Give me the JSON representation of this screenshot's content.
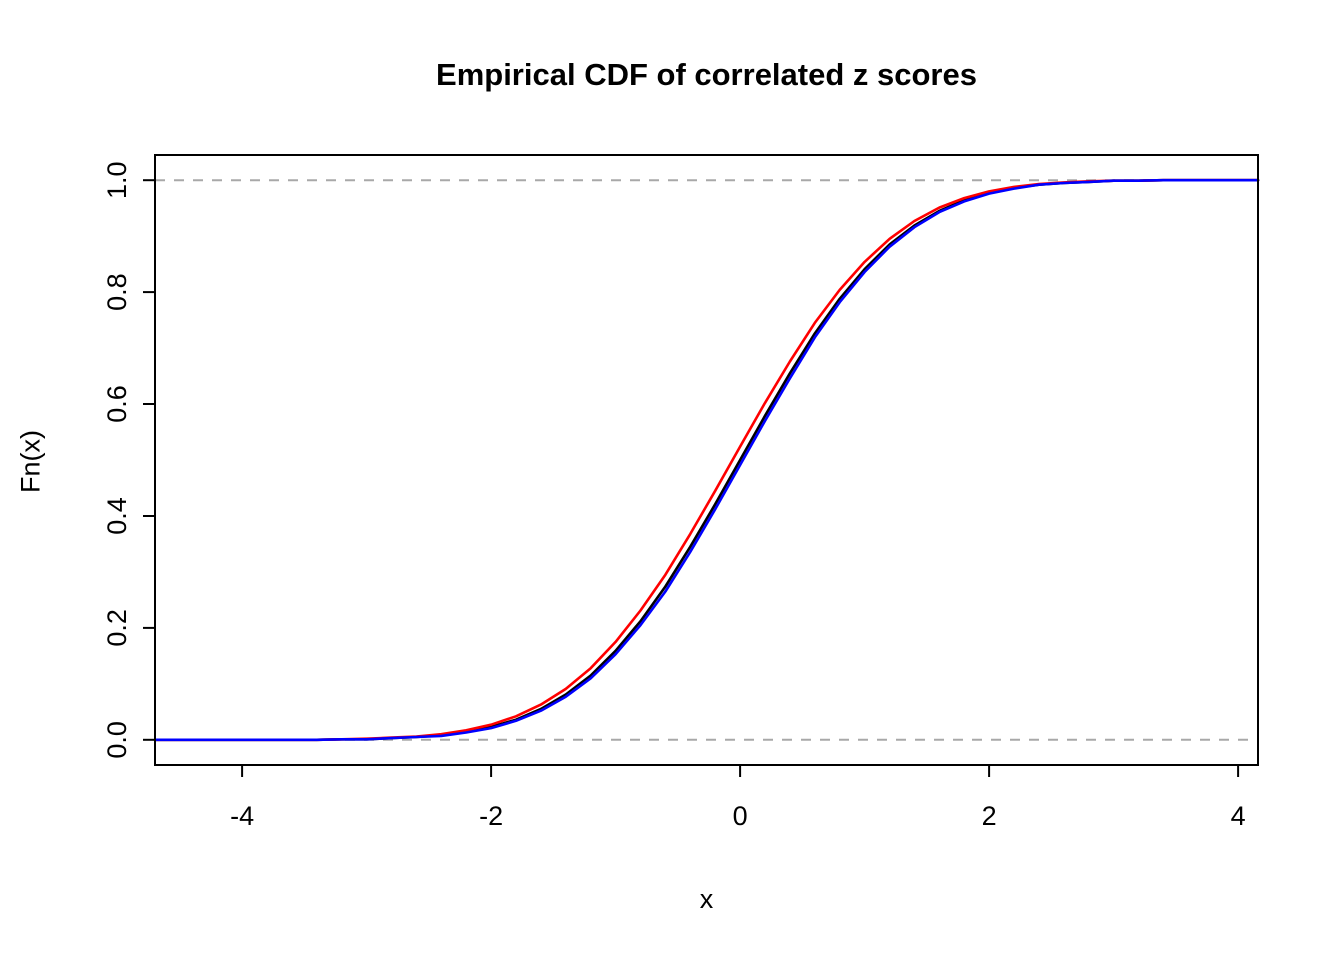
{
  "chart_data": {
    "type": "line",
    "title": "Empirical CDF of correlated z scores",
    "xlabel": "x",
    "ylabel": "Fn(x)",
    "xlim": [
      -4.7,
      4.16
    ],
    "ylim": [
      -0.045,
      1.045
    ],
    "grid": false,
    "legend": "none",
    "x_ticks": [
      -4,
      -2,
      0,
      2,
      4
    ],
    "x_tick_labels": [
      "-4",
      "-2",
      "0",
      "2",
      "4"
    ],
    "y_ticks": [
      0.0,
      0.2,
      0.4,
      0.6,
      0.8,
      1.0
    ],
    "y_tick_labels": [
      "0.0",
      "0.2",
      "0.4",
      "0.6",
      "0.8",
      "1.0"
    ],
    "reference_lines": {
      "horizontal": [
        0,
        1
      ],
      "style": "dashed",
      "color": "#a8a8a8"
    },
    "axis_color": "#000000",
    "x": [
      -4.7,
      -4.6,
      -4.4,
      -4.2,
      -4.0,
      -3.8,
      -3.6,
      -3.4,
      -3.2,
      -3.0,
      -2.8,
      -2.6,
      -2.4,
      -2.2,
      -2.0,
      -1.8,
      -1.6,
      -1.4,
      -1.2,
      -1.0,
      -0.8,
      -0.6,
      -0.4,
      -0.2,
      0.0,
      0.2,
      0.4,
      0.6,
      0.8,
      1.0,
      1.2,
      1.4,
      1.6,
      1.8,
      2.0,
      2.2,
      2.4,
      2.6,
      2.8,
      3.0,
      3.2,
      3.4,
      3.6,
      3.8,
      4.0,
      4.16
    ],
    "series": [
      {
        "name": "ecdf-black",
        "color": "#000000",
        "values": [
          0.0,
          0.0,
          0.0,
          0.0,
          0.0,
          0.0,
          0.0,
          0.0,
          0.001,
          0.001,
          0.003,
          0.005,
          0.008,
          0.014,
          0.023,
          0.036,
          0.055,
          0.081,
          0.115,
          0.159,
          0.212,
          0.274,
          0.345,
          0.421,
          0.5,
          0.579,
          0.655,
          0.726,
          0.788,
          0.841,
          0.885,
          0.919,
          0.945,
          0.964,
          0.977,
          0.986,
          0.992,
          0.995,
          0.997,
          0.999,
          0.999,
          1.0,
          1.0,
          1.0,
          1.0,
          1.0
        ]
      },
      {
        "name": "ecdf-red",
        "color": "#ff0000",
        "values": [
          0.0,
          0.0,
          0.0,
          0.0,
          0.0,
          0.0,
          0.0,
          0.0,
          0.001,
          0.002,
          0.004,
          0.006,
          0.01,
          0.017,
          0.027,
          0.042,
          0.063,
          0.091,
          0.128,
          0.175,
          0.231,
          0.295,
          0.368,
          0.445,
          0.524,
          0.602,
          0.676,
          0.745,
          0.804,
          0.854,
          0.895,
          0.927,
          0.951,
          0.968,
          0.98,
          0.988,
          0.993,
          0.996,
          0.998,
          0.999,
          0.999,
          1.0,
          1.0,
          1.0,
          1.0,
          1.0
        ]
      },
      {
        "name": "ecdf-blue",
        "color": "#0000ff",
        "values": [
          0.0,
          0.0,
          0.0,
          0.0,
          0.0,
          0.0,
          0.0,
          0.0,
          0.001,
          0.001,
          0.003,
          0.005,
          0.007,
          0.013,
          0.021,
          0.034,
          0.052,
          0.077,
          0.11,
          0.153,
          0.205,
          0.265,
          0.336,
          0.412,
          0.491,
          0.57,
          0.646,
          0.719,
          0.782,
          0.836,
          0.881,
          0.916,
          0.943,
          0.962,
          0.976,
          0.985,
          0.992,
          0.995,
          0.997,
          0.999,
          0.999,
          1.0,
          1.0,
          1.0,
          1.0,
          1.0
        ]
      }
    ]
  }
}
